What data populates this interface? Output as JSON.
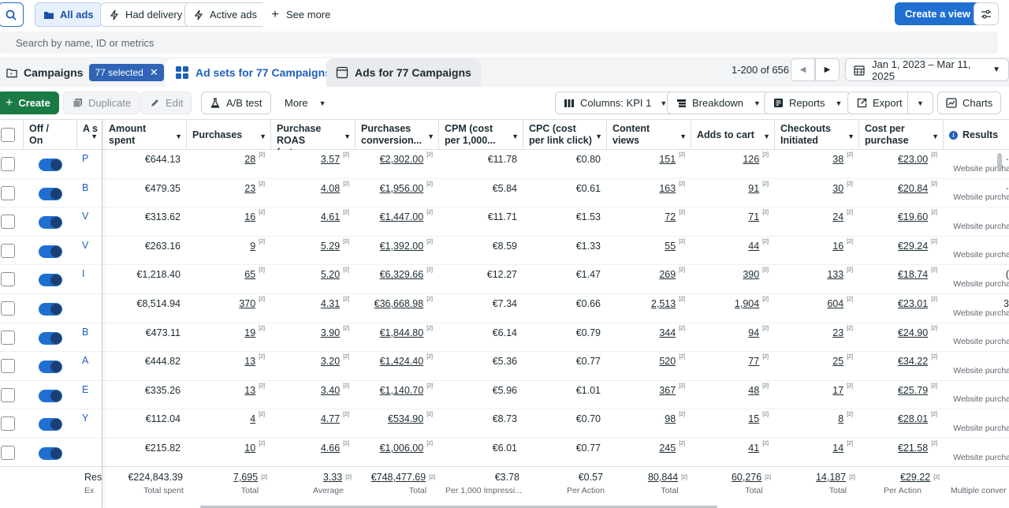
{
  "toolbar": {
    "all_ads": "All ads",
    "had_delivery": "Had delivery",
    "active_ads": "Active ads",
    "see_more": "See more",
    "create_view": "Create a view",
    "icons": {
      "search": "search-icon",
      "folder": "folder-icon",
      "bolt": "bolt-icon",
      "plus": "plus-icon",
      "settings": "settings-sliders-icon"
    }
  },
  "search": {
    "placeholder": "Search by name, ID or metrics"
  },
  "tabs": {
    "campaigns": "Campaigns",
    "selected_chip": "77 selected",
    "ad_sets": "Ad sets for 77 Campaigns",
    "ads": "Ads for 77 Campaigns"
  },
  "pagination": {
    "range": "1-200 of 656"
  },
  "date_range": "Jan 1, 2023 – Mar 11, 2025",
  "actions": {
    "create": "Create",
    "duplicate": "Duplicate",
    "edit": "Edit",
    "ab_test": "A/B test",
    "more": "More",
    "columns": "Columns: KPI 1",
    "breakdown": "Breakdown",
    "reports": "Reports",
    "export": "Export",
    "charts": "Charts"
  },
  "columns": {
    "off_on": "Off / On",
    "name_stub": "A s",
    "amount_spent": "Amount spent",
    "purchases": "Purchases",
    "roas": "Purchase ROAS (retur...",
    "purch_conv": "Purchases conversion...",
    "cpm": "CPM (cost per 1,000...",
    "cpc": "CPC (cost per link click)",
    "content_views": "Content views",
    "adds_to_cart": "Adds to cart",
    "checkouts": "Checkouts Initiated",
    "cost_per_purchase": "Cost per purchase",
    "results": "Results"
  },
  "sup": "[2]",
  "result_sub": "Website purcha",
  "rows": [
    {
      "name": "P",
      "spent": "€644.13",
      "purchases": "28",
      "roas": "3.57",
      "conv": "€2,302.00",
      "cpm": "€11.78",
      "cpc": "€0.80",
      "views": "151",
      "cart": "126",
      "checkouts": "38",
      "cpp": "€23.00",
      "result_edge": "·"
    },
    {
      "name": "B",
      "spent": "€479.35",
      "purchases": "23",
      "roas": "4.08",
      "conv": "€1,956.00",
      "cpm": "€5.84",
      "cpc": "€0.61",
      "views": "163",
      "cart": "91",
      "checkouts": "30",
      "cpp": "€20.84",
      "result_edge": "·"
    },
    {
      "name": "V",
      "spent": "€313.62",
      "purchases": "16",
      "roas": "4.61",
      "conv": "€1,447.00",
      "cpm": "€11.71",
      "cpc": "€1.53",
      "views": "72",
      "cart": "71",
      "checkouts": "24",
      "cpp": "€19.60",
      "result_edge": ""
    },
    {
      "name": "V",
      "spent": "€263.16",
      "purchases": "9",
      "roas": "5.29",
      "conv": "€1,392.00",
      "cpm": "€8.59",
      "cpc": "€1.33",
      "views": "55",
      "cart": "44",
      "checkouts": "16",
      "cpp": "€29.24",
      "result_edge": ""
    },
    {
      "name": "I",
      "spent": "€1,218.40",
      "purchases": "65",
      "roas": "5.20",
      "conv": "€6,329.66",
      "cpm": "€12.27",
      "cpc": "€1.47",
      "views": "269",
      "cart": "390",
      "checkouts": "133",
      "cpp": "€18.74",
      "result_edge": "("
    },
    {
      "name": "",
      "spent": "€8,514.94",
      "purchases": "370",
      "roas": "4.31",
      "conv": "€36,668.98",
      "cpm": "€7.34",
      "cpc": "€0.66",
      "views": "2,513",
      "cart": "1,904",
      "checkouts": "604",
      "cpp": "€23.01",
      "result_edge": "3"
    },
    {
      "name": "B",
      "spent": "€473.11",
      "purchases": "19",
      "roas": "3.90",
      "conv": "€1,844.80",
      "cpm": "€6.14",
      "cpc": "€0.79",
      "views": "344",
      "cart": "94",
      "checkouts": "23",
      "cpp": "€24.90",
      "result_edge": ""
    },
    {
      "name": "A",
      "spent": "€444.82",
      "purchases": "13",
      "roas": "3.20",
      "conv": "€1,424.40",
      "cpm": "€5.36",
      "cpc": "€0.77",
      "views": "520",
      "cart": "77",
      "checkouts": "25",
      "cpp": "€34.22",
      "result_edge": ""
    },
    {
      "name": "E",
      "spent": "€335.26",
      "purchases": "13",
      "roas": "3.40",
      "conv": "€1,140.70",
      "cpm": "€5.96",
      "cpc": "€1.01",
      "views": "367",
      "cart": "48",
      "checkouts": "17",
      "cpp": "€25.79",
      "result_edge": ""
    },
    {
      "name": "Y",
      "spent": "€112.04",
      "purchases": "4",
      "roas": "4.77",
      "conv": "€534.90",
      "cpm": "€8.73",
      "cpc": "€0.70",
      "views": "98",
      "cart": "15",
      "checkouts": "8",
      "cpp": "€28.01",
      "result_edge": ""
    },
    {
      "name": "",
      "spent": "€215.82",
      "purchases": "10",
      "roas": "4.66",
      "conv": "€1,006.00",
      "cpm": "€6.01",
      "cpc": "€0.77",
      "views": "245",
      "cart": "41",
      "checkouts": "14",
      "cpp": "€21.58",
      "result_edge": ""
    }
  ],
  "totals": {
    "name_top": "Res",
    "name_sub": "Ex",
    "spent": "€224,843.39",
    "spent_label": "Total spent",
    "purchases": "7,695",
    "purchases_label": "Total",
    "roas": "3.33",
    "roas_label": "Average",
    "conv": "€748,477.69",
    "conv_label": "Total",
    "cpm": "€3.78",
    "cpm_label": "Per 1,000 Impressi...",
    "cpc": "€0.57",
    "cpc_label": "Per Action",
    "views": "80,844",
    "views_label": "Total",
    "cart": "60,276",
    "cart_label": "Total",
    "checkouts": "14,187",
    "checkouts_label": "Total",
    "cpp": "€29.22",
    "cpp_label": "Per Action",
    "results_label": "Multiple conver"
  },
  "colors": {
    "primary": "#1f6fd1",
    "create_green": "#1a7a45",
    "chip": "#2f64b6",
    "link": "#1f5fbf"
  }
}
